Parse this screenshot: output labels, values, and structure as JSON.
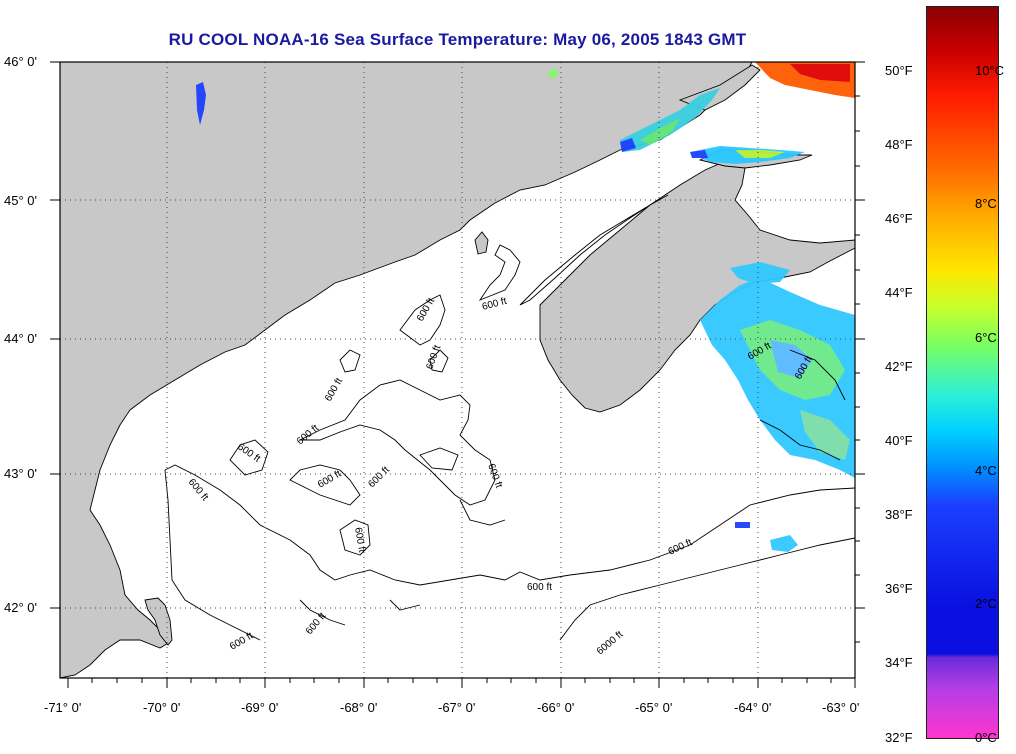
{
  "title": "RU COOL  NOAA-16  Sea Surface Temperature:  May 06, 2005 1843 GMT",
  "lat_labels": [
    "46° 0'",
    "45° 0'",
    "44° 0'",
    "43° 0'",
    "42° 0'"
  ],
  "lon_labels": [
    "-71° 0'",
    "-70° 0'",
    "-69° 0'",
    "-68° 0'",
    "-67° 0'",
    "-66° 0'",
    "-65° 0'",
    "-64° 0'",
    "-63° 0'"
  ],
  "colorbar": {
    "fahrenheit_labels": [
      "50°F",
      "48°F",
      "46°F",
      "44°F",
      "42°F",
      "40°F",
      "38°F",
      "36°F",
      "34°F",
      "32°F"
    ],
    "celsius_labels": [
      "10°C",
      "8°C",
      "6°C",
      "4°C",
      "2°C",
      "0°C"
    ]
  },
  "contour_labels": [
    "600 ft",
    "600 ft",
    "600 ft",
    "600 ft",
    "600 ft",
    "600 ft",
    "600 ft",
    "600 ft",
    "600 ft",
    "600 ft",
    "600 ft",
    "600 ft",
    "600 ft",
    "600 ft",
    "600 ft",
    "6000 ft"
  ],
  "colors": {
    "land": "#c8c8c8",
    "ocean": "#ffffff",
    "title": "#1a1aa0",
    "grid": "#555555"
  }
}
